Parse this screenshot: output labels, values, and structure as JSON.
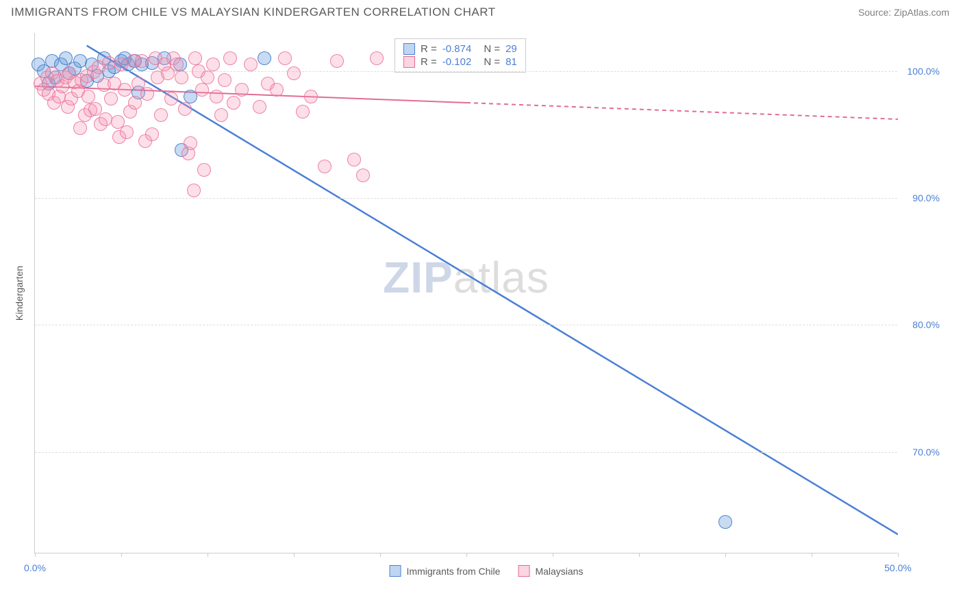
{
  "header": {
    "title": "IMMIGRANTS FROM CHILE VS MALAYSIAN KINDERGARTEN CORRELATION CHART",
    "source_label": "Source: ",
    "source_value": "ZipAtlas.com"
  },
  "chart": {
    "type": "scatter",
    "ylabel": "Kindergarten",
    "xlim": [
      0,
      50
    ],
    "ylim": [
      62,
      103
    ],
    "xtick_positions": [
      0,
      5,
      10,
      15,
      20,
      25,
      30,
      35,
      40,
      45,
      50
    ],
    "xtick_labels": {
      "0": "0.0%",
      "50": "50.0%"
    },
    "ytick_positions": [
      70,
      80,
      90,
      100
    ],
    "ytick_labels": [
      "70.0%",
      "80.0%",
      "90.0%",
      "100.0%"
    ],
    "grid_color": "#dddddd",
    "axis_color": "#cccccc",
    "background_color": "#ffffff",
    "label_color_axis": "#4a7fd6",
    "marker_radius": 10,
    "series": [
      {
        "name": "Immigrants from Chile",
        "fill_color": "rgba(94,152,222,0.35)",
        "stroke_color": "#4a7fd6",
        "R": "-0.874",
        "N": "29",
        "trend": {
          "x1": 3,
          "y1": 102,
          "x2": 50,
          "y2": 63.5,
          "dash": false,
          "width": 2.5
        },
        "points": [
          [
            0.2,
            100.5
          ],
          [
            0.5,
            100
          ],
          [
            0.8,
            99
          ],
          [
            1,
            100.8
          ],
          [
            1.2,
            99.5
          ],
          [
            1.5,
            100.5
          ],
          [
            1.8,
            101
          ],
          [
            2,
            99.8
          ],
          [
            2.3,
            100.2
          ],
          [
            2.6,
            100.8
          ],
          [
            3,
            99.2
          ],
          [
            3.3,
            100.5
          ],
          [
            3.6,
            99.6
          ],
          [
            4,
            101
          ],
          [
            4.3,
            100
          ],
          [
            4.6,
            100.3
          ],
          [
            5,
            100.8
          ],
          [
            5.4,
            100.5
          ],
          [
            5.8,
            100.8
          ],
          [
            5.2,
            101
          ],
          [
            6.2,
            100.5
          ],
          [
            6.8,
            100.6
          ],
          [
            7.5,
            101
          ],
          [
            6,
            98.3
          ],
          [
            9,
            98
          ],
          [
            8.4,
            100.5
          ],
          [
            8.5,
            93.8
          ],
          [
            13.3,
            101
          ],
          [
            40,
            64.5
          ]
        ]
      },
      {
        "name": "Malaysians",
        "fill_color": "rgba(245,150,180,0.30)",
        "stroke_color": "#e26b94",
        "R": "-0.102",
        "N": "81",
        "trend": {
          "x1": 0,
          "y1": 98.8,
          "x2": 25,
          "y2": 97.5,
          "x2_dash": 50,
          "y2_dash": 96.2,
          "width": 2
        },
        "points": [
          [
            0.3,
            99
          ],
          [
            0.5,
            98.5
          ],
          [
            0.7,
            99.5
          ],
          [
            0.8,
            98.2
          ],
          [
            1,
            99.8
          ],
          [
            1.1,
            97.5
          ],
          [
            1.3,
            99.2
          ],
          [
            1.4,
            98
          ],
          [
            1.6,
            98.8
          ],
          [
            1.8,
            99.5
          ],
          [
            1.9,
            97.2
          ],
          [
            2,
            99.8
          ],
          [
            2.1,
            97.8
          ],
          [
            2.3,
            99.1
          ],
          [
            2.5,
            98.4
          ],
          [
            2.6,
            95.5
          ],
          [
            2.7,
            99.3
          ],
          [
            2.9,
            96.5
          ],
          [
            3,
            99.6
          ],
          [
            3.1,
            98
          ],
          [
            3.2,
            96.9
          ],
          [
            3.4,
            99.9
          ],
          [
            3.5,
            97
          ],
          [
            3.7,
            100.3
          ],
          [
            3.8,
            95.8
          ],
          [
            4,
            98.9
          ],
          [
            4.1,
            96.2
          ],
          [
            4.3,
            100.6
          ],
          [
            4.4,
            97.8
          ],
          [
            4.6,
            99
          ],
          [
            4.8,
            96
          ],
          [
            4.9,
            94.8
          ],
          [
            5,
            100.5
          ],
          [
            5.2,
            98.5
          ],
          [
            5.3,
            95.2
          ],
          [
            5.5,
            96.8
          ],
          [
            5.7,
            100.8
          ],
          [
            5.8,
            97.5
          ],
          [
            6,
            99
          ],
          [
            6.2,
            100.8
          ],
          [
            6.4,
            94.5
          ],
          [
            6.5,
            98.2
          ],
          [
            6.8,
            95
          ],
          [
            7,
            101
          ],
          [
            7.1,
            99.5
          ],
          [
            7.3,
            96.5
          ],
          [
            7.5,
            100.5
          ],
          [
            7.7,
            99.8
          ],
          [
            7.9,
            97.8
          ],
          [
            8,
            101
          ],
          [
            8.2,
            100.5
          ],
          [
            8.5,
            99.5
          ],
          [
            8.7,
            97
          ],
          [
            8.9,
            93.5
          ],
          [
            9,
            94.3
          ],
          [
            9.2,
            90.6
          ],
          [
            9.3,
            101
          ],
          [
            9.5,
            100
          ],
          [
            9.7,
            98.5
          ],
          [
            9.8,
            92.2
          ],
          [
            10,
            99.5
          ],
          [
            10.3,
            100.5
          ],
          [
            10.5,
            98
          ],
          [
            10.8,
            96.5
          ],
          [
            11,
            99.3
          ],
          [
            11.3,
            101
          ],
          [
            11.5,
            97.5
          ],
          [
            12,
            98.5
          ],
          [
            12.5,
            100.5
          ],
          [
            13,
            97.2
          ],
          [
            13.5,
            99
          ],
          [
            14,
            98.5
          ],
          [
            14.5,
            101
          ],
          [
            15,
            99.8
          ],
          [
            15.5,
            96.8
          ],
          [
            16,
            98
          ],
          [
            16.8,
            92.5
          ],
          [
            17.5,
            100.8
          ],
          [
            18.5,
            93
          ],
          [
            19,
            91.8
          ],
          [
            19.8,
            101
          ]
        ]
      }
    ],
    "bottom_legend": [
      {
        "label": "Immigrants from Chile",
        "class": "b"
      },
      {
        "label": "Malaysians",
        "class": "p"
      }
    ],
    "watermark": {
      "bold": "ZIP",
      "rest": "atlas"
    }
  }
}
